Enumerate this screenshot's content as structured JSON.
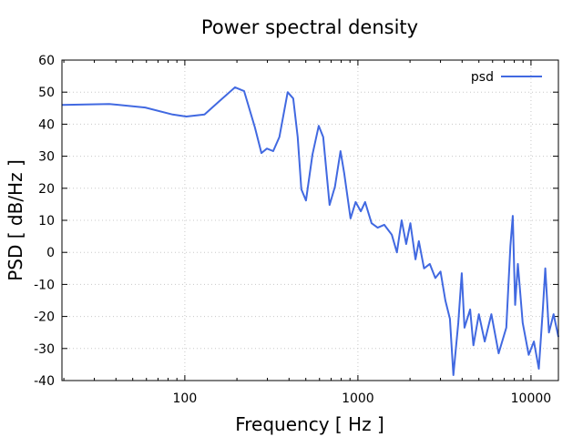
{
  "chart_data": {
    "type": "line",
    "title": "Power spectral density",
    "xlabel": "Frequency [ Hz ]",
    "ylabel": "PSD [ dB/Hz ]",
    "xscale": "log",
    "xlim": [
      19.5,
      14400
    ],
    "ylim": [
      -40,
      60
    ],
    "xticks": [
      100,
      1000,
      10000
    ],
    "xtick_labels": [
      "100",
      "1000",
      "10000"
    ],
    "yticks": [
      -40,
      -30,
      -20,
      -10,
      0,
      10,
      20,
      30,
      40,
      50,
      60
    ],
    "ytick_labels": [
      "-40",
      "-30",
      "-20",
      "-10",
      "0",
      "10",
      "20",
      "30",
      "40",
      "50",
      "60"
    ],
    "grid": true,
    "legend_position": "top-right",
    "series": [
      {
        "name": "psd",
        "color": "#4169e1",
        "x": [
          19.5,
          36.6,
          59,
          85,
          102,
          130,
          157,
          195,
          220,
          254,
          277,
          298,
          324,
          352,
          393,
          423,
          449,
          471,
          501,
          546,
          594,
          630,
          686,
          737,
          793,
          833,
          906,
          970,
          1040,
          1100,
          1200,
          1300,
          1420,
          1570,
          1680,
          1790,
          1900,
          2010,
          2150,
          2250,
          2410,
          2600,
          2800,
          3000,
          3200,
          3400,
          3560,
          3800,
          3980,
          4130,
          4450,
          4650,
          5000,
          5400,
          5900,
          6500,
          7200,
          7600,
          7850,
          8100,
          8400,
          8950,
          9700,
          10400,
          11100,
          11700,
          12100,
          12700,
          13500,
          14400
        ],
        "y": [
          46,
          46.3,
          45.2,
          43,
          42.4,
          43,
          47,
          51.5,
          50.3,
          39,
          31,
          32.4,
          31.6,
          36,
          50,
          48,
          36,
          19.7,
          16.2,
          30.5,
          39.5,
          36,
          14.8,
          20.5,
          31.6,
          24.8,
          10.6,
          15.7,
          12.8,
          15.7,
          9.1,
          7.7,
          8.6,
          5.5,
          0,
          10,
          2.6,
          9.1,
          -2.2,
          3.5,
          -5,
          -3.6,
          -8,
          -6,
          -15,
          -20.7,
          -38.3,
          -22,
          -6.5,
          -23.5,
          -17.8,
          -29,
          -19.3,
          -27.8,
          -19.3,
          -31.5,
          -23.5,
          2,
          11.4,
          -16.4,
          -3.6,
          -22,
          -32,
          -27.8,
          -36.3,
          -17.8,
          -5,
          -25,
          -19.3,
          -26.4
        ]
      }
    ]
  }
}
